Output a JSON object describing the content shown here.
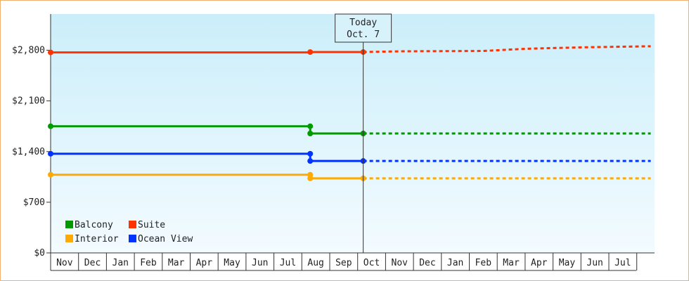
{
  "chart_data": {
    "type": "line",
    "title": "",
    "xlabel": "",
    "ylabel": "",
    "ylim": [
      0,
      3300
    ],
    "y_ticks": [
      {
        "value": 0,
        "label": "$0"
      },
      {
        "value": 700,
        "label": "$700"
      },
      {
        "value": 1400,
        "label": "$1,400"
      },
      {
        "value": 2100,
        "label": "$2,100"
      },
      {
        "value": 2800,
        "label": "$2,800"
      }
    ],
    "x_ticks": [
      "Nov",
      "Dec",
      "Jan",
      "Feb",
      "Mar",
      "Apr",
      "May",
      "Jun",
      "Jul",
      "Aug",
      "Sep",
      "Oct",
      "Nov",
      "Dec",
      "Jan",
      "Feb",
      "Mar",
      "Apr",
      "May",
      "Jun",
      "Jul"
    ],
    "today": {
      "line1": "Today",
      "line2": "Oct. 7",
      "x": 11.2
    },
    "grid": false,
    "legend_position": "bottom-left",
    "series": [
      {
        "name": "Suite",
        "color": "#ff3300",
        "history": [
          [
            0,
            2770
          ],
          [
            9.3,
            2770
          ],
          [
            9.3,
            2775
          ],
          [
            11.2,
            2775
          ]
        ],
        "markers": [
          [
            0,
            2770
          ],
          [
            9.3,
            2775
          ],
          [
            11.2,
            2775
          ]
        ],
        "forecast": [
          [
            11.2,
            2775
          ],
          [
            12.5,
            2785
          ],
          [
            15.5,
            2790
          ],
          [
            17,
            2820
          ],
          [
            19,
            2840
          ],
          [
            21.5,
            2855
          ]
        ]
      },
      {
        "name": "Balcony",
        "color": "#009900",
        "history": [
          [
            0,
            1750
          ],
          [
            9.3,
            1750
          ],
          [
            9.3,
            1650
          ],
          [
            11.2,
            1650
          ]
        ],
        "markers": [
          [
            0,
            1750
          ],
          [
            9.3,
            1750
          ],
          [
            9.3,
            1650
          ],
          [
            11.2,
            1650
          ]
        ],
        "forecast": [
          [
            11.2,
            1650
          ],
          [
            21.5,
            1650
          ]
        ]
      },
      {
        "name": "Ocean View",
        "color": "#0033ff",
        "history": [
          [
            0,
            1370
          ],
          [
            9.3,
            1370
          ],
          [
            9.3,
            1270
          ],
          [
            11.2,
            1270
          ]
        ],
        "markers": [
          [
            0,
            1370
          ],
          [
            9.3,
            1370
          ],
          [
            9.3,
            1270
          ],
          [
            11.2,
            1270
          ]
        ],
        "forecast": [
          [
            11.2,
            1270
          ],
          [
            21.5,
            1270
          ]
        ]
      },
      {
        "name": "Interior",
        "color": "#ffaa00",
        "history": [
          [
            0,
            1080
          ],
          [
            9.3,
            1080
          ],
          [
            9.3,
            1030
          ],
          [
            11.2,
            1030
          ]
        ],
        "markers": [
          [
            0,
            1080
          ],
          [
            9.3,
            1080
          ],
          [
            9.3,
            1030
          ],
          [
            11.2,
            1030
          ]
        ],
        "forecast": [
          [
            11.2,
            1030
          ],
          [
            21.5,
            1030
          ]
        ]
      }
    ],
    "legend": [
      {
        "name": "Balcony",
        "color": "#009900"
      },
      {
        "name": "Suite",
        "color": "#ff3300"
      },
      {
        "name": "Interior",
        "color": "#ffaa00"
      },
      {
        "name": "Ocean View",
        "color": "#0033ff"
      }
    ]
  }
}
